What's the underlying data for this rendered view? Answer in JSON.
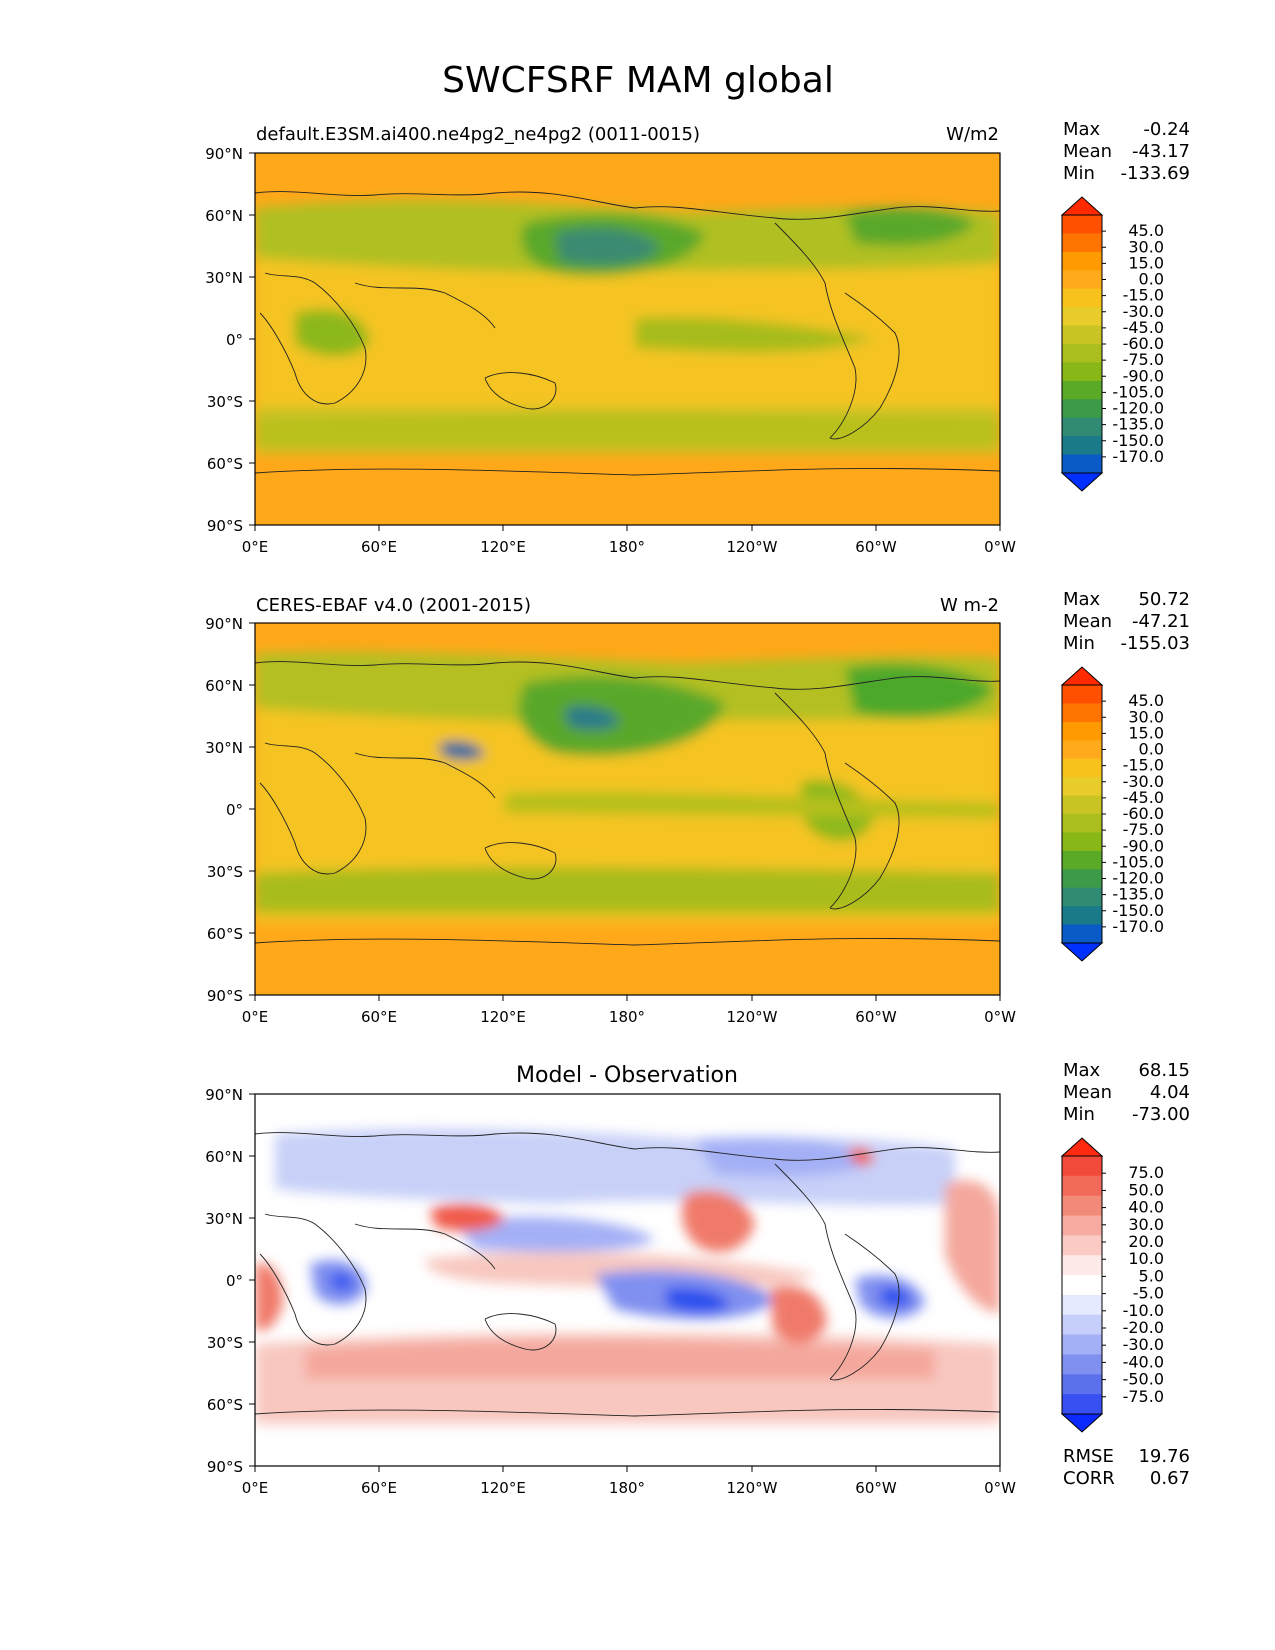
{
  "figure": {
    "title": "SWCFSRF MAM global"
  },
  "axes": {
    "lat_ticks": [
      "90°N",
      "60°N",
      "30°N",
      "0°",
      "30°S",
      "60°S",
      "90°S"
    ],
    "lon_ticks": [
      "0°E",
      "60°E",
      "120°E",
      "180°",
      "120°W",
      "60°W",
      "0°W"
    ]
  },
  "panels": [
    {
      "title_left": "default.E3SM.ai400.ne4pg2_ne4pg2 (0011-0015)",
      "title_center": "",
      "units": "W/m2",
      "stats": {
        "max_label": "Max",
        "max": "-0.24",
        "mean_label": "Mean",
        "mean": "-43.17",
        "min_label": "Min",
        "min": "-133.69"
      },
      "colorbar_levels": [
        "45.0",
        "30.0",
        "15.0",
        "0.0",
        "-15.0",
        "-30.0",
        "-45.0",
        "-60.0",
        "-75.0",
        "-90.0",
        "-105.0",
        "-120.0",
        "-135.0",
        "-150.0",
        "-170.0"
      ],
      "colorbar_colors": [
        "#ff2a00",
        "#ff5000",
        "#ff7300",
        "#ff9a00",
        "#ffaa1a",
        "#f8c21c",
        "#e8cc2a",
        "#c8c424",
        "#aabe1e",
        "#88b818",
        "#5aaa28",
        "#3c9a48",
        "#318a72",
        "#1a7a8a",
        "#0a5ac8",
        "#0030ff"
      ]
    },
    {
      "title_left": "CERES-EBAF v4.0 (2001-2015)",
      "title_center": "",
      "units": "W m-2",
      "stats": {
        "max_label": "Max",
        "max": "50.72",
        "mean_label": "Mean",
        "mean": "-47.21",
        "min_label": "Min",
        "min": "-155.03"
      },
      "colorbar_levels": [
        "45.0",
        "30.0",
        "15.0",
        "0.0",
        "-15.0",
        "-30.0",
        "-45.0",
        "-60.0",
        "-75.0",
        "-90.0",
        "-105.0",
        "-120.0",
        "-135.0",
        "-150.0",
        "-170.0"
      ],
      "colorbar_colors": [
        "#ff2a00",
        "#ff5000",
        "#ff7300",
        "#ff9a00",
        "#ffaa1a",
        "#f8c21c",
        "#e8cc2a",
        "#c8c424",
        "#aabe1e",
        "#88b818",
        "#5aaa28",
        "#3c9a48",
        "#318a72",
        "#1a7a8a",
        "#0a5ac8",
        "#0030ff"
      ]
    },
    {
      "title_left": "",
      "title_center": "Model - Observation",
      "units": "",
      "stats": {
        "max_label": "Max",
        "max": "68.15",
        "mean_label": "Mean",
        "mean": "4.04",
        "min_label": "Min",
        "min": "-73.00"
      },
      "colorbar_levels": [
        "75.0",
        "50.0",
        "40.0",
        "30.0",
        "20.0",
        "10.0",
        "5.0",
        "-5.0",
        "-10.0",
        "-20.0",
        "-30.0",
        "-40.0",
        "-50.0",
        "-75.0"
      ],
      "colorbar_colors": [
        "#ff2a10",
        "#f24a3a",
        "#f26a5a",
        "#f28a7a",
        "#f6aaa0",
        "#fbcac4",
        "#feeae8",
        "#ffffff",
        "#e6eaff",
        "#c6cefa",
        "#a4b0f6",
        "#8090f0",
        "#5c70ec",
        "#3850f2",
        "#0a2aff"
      ],
      "metrics": {
        "rmse_label": "RMSE",
        "rmse": "19.76",
        "corr_label": "CORR",
        "corr": "0.67"
      }
    }
  ],
  "palette": {
    "fields": {
      "top": {
        "base": "#ffa81a",
        "mid": "#f5c423",
        "green": "#a8bc1c",
        "dgreen": "#4ca82c",
        "deep": "#3a8a72"
      },
      "mid": {
        "base": "#ffa81a",
        "mid": "#f5c423",
        "green": "#a8bc1c",
        "dgreen": "#4ca82c",
        "deep": "#2c7a8a"
      },
      "diff": {
        "red": "#f07a6a",
        "lred": "#f8c8c0",
        "blue": "#8090f0",
        "lblue": "#c8d0f8",
        "dblue": "#2a50ee"
      }
    }
  }
}
